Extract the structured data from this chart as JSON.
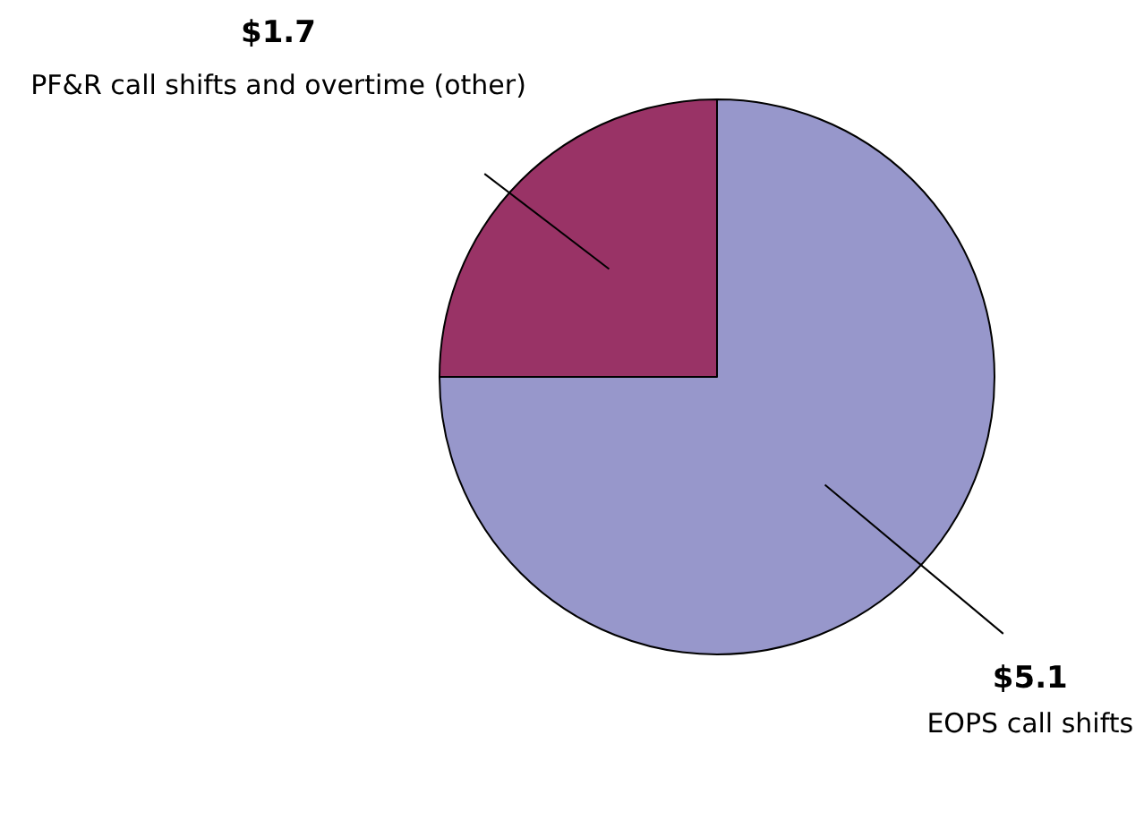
{
  "chart_data": {
    "type": "pie",
    "categories": [
      "EOPS call shifts",
      "PF&R call shifts and overtime (other)"
    ],
    "values": [
      5.1,
      1.7
    ],
    "colors": [
      "#9797cb",
      "#993366"
    ],
    "value_labels": [
      "$5.1",
      "$1.7"
    ]
  }
}
